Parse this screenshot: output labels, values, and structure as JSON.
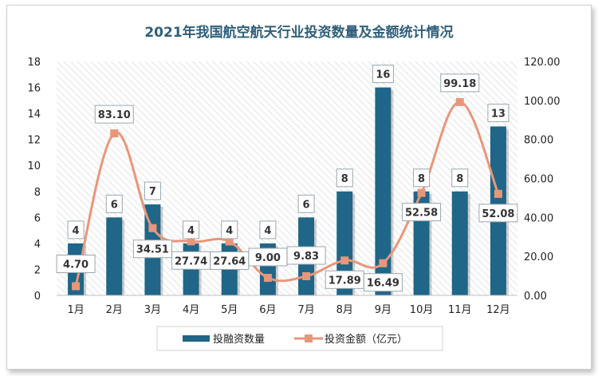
{
  "chart_data": {
    "type": "bar",
    "title": "2021年我国航空航天行业投资数量及金额统计情况",
    "categories": [
      "1月",
      "2月",
      "3月",
      "4月",
      "5月",
      "6月",
      "7月",
      "8月",
      "9月",
      "10月",
      "11月",
      "12月"
    ],
    "series": [
      {
        "name": "投融资数量",
        "type": "bar",
        "axis": "left",
        "values": [
          4,
          6,
          7,
          4,
          4,
          4,
          6,
          8,
          16,
          8,
          8,
          13
        ],
        "labels": [
          "4",
          "6",
          "7",
          "4",
          "4",
          "4",
          "6",
          "8",
          "16",
          "8",
          "8",
          "13"
        ],
        "color": "#1f6688"
      },
      {
        "name": "投资金额（亿元）",
        "type": "line",
        "axis": "right",
        "values": [
          4.7,
          83.1,
          34.51,
          27.74,
          27.64,
          9.0,
          9.83,
          17.89,
          16.49,
          52.58,
          99.18,
          52.08
        ],
        "labels": [
          "4.70",
          "83.10",
          "34.51",
          "27.74",
          "27.64",
          "9.00",
          "9.83",
          "17.89",
          "16.49",
          "52.58",
          "99.18",
          "52.08"
        ],
        "color": "#e8967a"
      }
    ],
    "y_left": {
      "ylim": [
        0,
        18
      ],
      "ticks": [
        "0",
        "2",
        "4",
        "6",
        "8",
        "10",
        "12",
        "14",
        "16",
        "18"
      ]
    },
    "y_right": {
      "ylim": [
        0,
        120
      ],
      "ticks": [
        "0.00",
        "20.00",
        "40.00",
        "60.00",
        "80.00",
        "100.00",
        "120.00"
      ]
    },
    "grid": false,
    "legend_position": "bottom",
    "plot_background": "hatched"
  }
}
